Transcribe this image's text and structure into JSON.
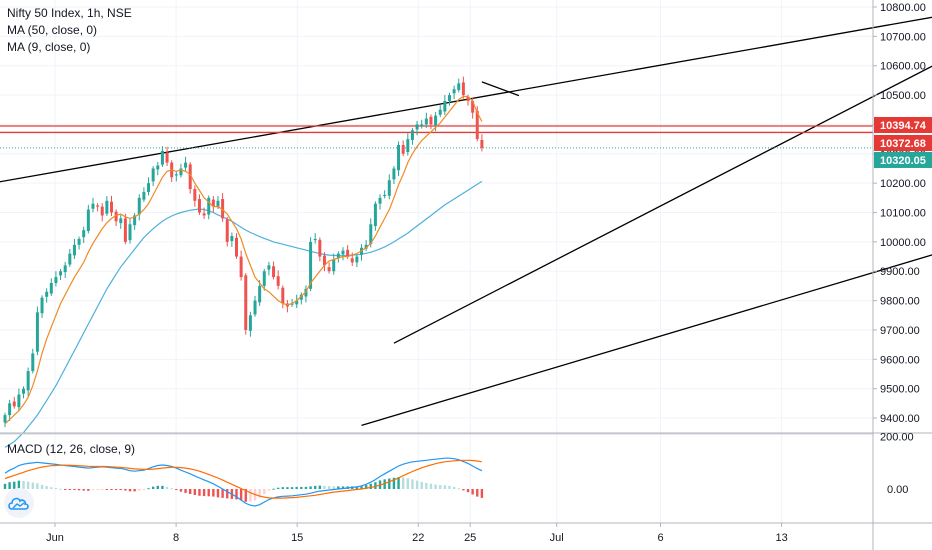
{
  "legend": {
    "symbol": "Nifty 50 Index, 1h, NSE",
    "ma50": "MA (50, close, 0)",
    "ma9": "MA (9, close, 0)",
    "macd": "MACD (12, 26, close, 9)"
  },
  "colors": {
    "up": "#26a69a",
    "down": "#ef5350",
    "ma50": "#4eb0dc",
    "ma9": "#f08a24",
    "hline": "#e53935",
    "last": "#26a69a",
    "trend": "#000000"
  },
  "chart_data": [
    {
      "type": "candlestick",
      "title": "Nifty 50 Index, 1h, NSE",
      "y_ticks": [
        "10800.00",
        "10700.00",
        "10600.00",
        "10500.00",
        "10400.00",
        "10300.00",
        "10200.00",
        "10100.00",
        "10000.00",
        "9900.00",
        "9800.00",
        "9700.00",
        "9600.00",
        "9500.00",
        "9400.00"
      ],
      "x_ticks": [
        {
          "label": "Jun",
          "day": 1
        },
        {
          "label": "8",
          "day": 8
        },
        {
          "label": "15",
          "day": 15
        },
        {
          "label": "22",
          "day": 22
        },
        {
          "label": "25",
          "day": 25
        },
        {
          "label": "Jul",
          "day": 30
        },
        {
          "label": "6",
          "day": 36
        },
        {
          "label": "13",
          "day": 43
        }
      ],
      "price_range": [
        9360,
        10820
      ],
      "horizontal_levels": [
        {
          "label": "10394.74",
          "value": 10394.74
        },
        {
          "label": "10372.68",
          "value": 10372.68
        }
      ],
      "last_price": {
        "label": "10320.05",
        "value": 10320.05
      },
      "closes": [
        9410,
        9450,
        9440,
        9480,
        9500,
        9560,
        9620,
        9760,
        9810,
        9830,
        9860,
        9880,
        9900,
        9920,
        9960,
        9990,
        10010,
        10040,
        10110,
        10130,
        10120,
        10090,
        10140,
        10100,
        10070,
        10080,
        10000,
        10060,
        10090,
        10150,
        10170,
        10200,
        10250,
        10260,
        10310,
        10270,
        10220,
        10230,
        10250,
        10270,
        10180,
        10140,
        10100,
        10090,
        10150,
        10120,
        10140,
        10080,
        10000,
        10020,
        9950,
        9880,
        9700,
        9750,
        9800,
        9850,
        9900,
        9920,
        9880,
        9850,
        9790,
        9780,
        9790,
        9800,
        9820,
        9840,
        10000,
        10010,
        9950,
        9920,
        9900,
        9940,
        9960,
        9970,
        9950,
        9930,
        9950,
        9980,
        9990,
        10060,
        10130,
        10150,
        10160,
        10210,
        10250,
        10330,
        10300,
        10350,
        10380,
        10400,
        10400,
        10420,
        10400,
        10430,
        10450,
        10480,
        10500,
        10520,
        10540,
        10500,
        10480,
        10440,
        10350,
        10320
      ],
      "ma9": [
        9380,
        9395,
        9410,
        9425,
        9445,
        9470,
        9510,
        9560,
        9620,
        9670,
        9710,
        9750,
        9790,
        9820,
        9850,
        9880,
        9905,
        9930,
        9965,
        9995,
        10020,
        10045,
        10065,
        10080,
        10090,
        10095,
        10085,
        10080,
        10085,
        10095,
        10110,
        10130,
        10160,
        10190,
        10220,
        10240,
        10245,
        10240,
        10245,
        10240,
        10230,
        10200,
        10175,
        10150,
        10135,
        10120,
        10120,
        10110,
        10095,
        10070,
        10045,
        10010,
        9960,
        9920,
        9880,
        9860,
        9840,
        9830,
        9815,
        9800,
        9790,
        9785,
        9790,
        9800,
        9815,
        9830,
        9860,
        9880,
        9900,
        9920,
        9935,
        9940,
        9945,
        9950,
        9950,
        9955,
        9960,
        9970,
        9980,
        9995,
        10020,
        10050,
        10080,
        10110,
        10150,
        10195,
        10230,
        10270,
        10300,
        10325,
        10345,
        10360,
        10375,
        10390,
        10405,
        10425,
        10445,
        10465,
        10485,
        10495,
        10495,
        10480,
        10440,
        10410
      ],
      "ma50": [
        9300,
        9310,
        9320,
        9335,
        9350,
        9370,
        9390,
        9410,
        9435,
        9460,
        9485,
        9510,
        9540,
        9570,
        9600,
        9630,
        9660,
        9690,
        9720,
        9750,
        9780,
        9810,
        9840,
        9865,
        9890,
        9915,
        9935,
        9955,
        9975,
        9995,
        10015,
        10030,
        10045,
        10058,
        10070,
        10080,
        10088,
        10095,
        10100,
        10104,
        10108,
        10110,
        10112,
        10110,
        10106,
        10100,
        10092,
        10085,
        10078,
        10070,
        10060,
        10050,
        10040,
        10032,
        10025,
        10018,
        10012,
        10006,
        10000,
        9996,
        9992,
        9988,
        9984,
        9980,
        9976,
        9972,
        9968,
        9964,
        9960,
        9957,
        9955,
        9954,
        9953,
        9953,
        9954,
        9955,
        9956,
        9958,
        9961,
        9965,
        9970,
        9976,
        9983,
        9991,
        10000,
        10010,
        10020,
        10030,
        10042,
        10054,
        10066,
        10078,
        10090,
        10102,
        10114,
        10126,
        10136,
        10146,
        10156,
        10166,
        10176,
        10186,
        10196,
        10206
      ],
      "trendlines": [
        {
          "from": {
            "bar": -10,
            "price": 10180
          },
          "to": {
            "bar": 211,
            "price": 10795
          }
        },
        {
          "from": {
            "bar": 84,
            "price": 9655
          },
          "to": {
            "bar": 206,
            "price": 10645
          }
        },
        {
          "from": {
            "bar": 77,
            "price": 9375
          },
          "to": {
            "bar": 222,
            "price": 10058
          }
        },
        {
          "from": {
            "bar": 103,
            "price": 10545
          },
          "to": {
            "bar": 111,
            "price": 10498
          }
        }
      ]
    },
    {
      "type": "macd",
      "title": "MACD (12, 26, close, 9)",
      "y_ticks": [
        "200.00",
        "0.00"
      ],
      "y_range": [
        -85,
        210
      ],
      "macd": [
        60,
        72,
        80,
        90,
        95,
        98,
        100,
        102,
        100,
        98,
        96,
        94,
        92,
        90,
        88,
        86,
        84,
        82,
        80,
        82,
        84,
        85,
        84,
        82,
        80,
        79,
        75,
        70,
        68,
        70,
        72,
        78,
        85,
        90,
        92,
        90,
        86,
        80,
        72,
        65,
        58,
        50,
        42,
        35,
        28,
        20,
        10,
        0,
        -10,
        -20,
        -30,
        -42,
        -55,
        -62,
        -65,
        -60,
        -50,
        -40,
        -34,
        -30,
        -28,
        -27,
        -26,
        -24,
        -22,
        -20,
        -16,
        -12,
        -8,
        -6,
        -4,
        -2,
        0,
        2,
        4,
        6,
        8,
        12,
        18,
        26,
        36,
        48,
        58,
        68,
        78,
        88,
        95,
        100,
        104,
        106,
        108,
        110,
        112,
        114,
        116,
        118,
        118,
        116,
        112,
        105,
        98,
        88,
        78,
        70
      ],
      "signal": [
        40,
        46,
        52,
        58,
        64,
        70,
        75,
        80,
        84,
        87,
        89,
        90,
        91,
        91,
        91,
        90,
        89,
        88,
        87,
        86,
        86,
        86,
        86,
        85,
        84,
        83,
        81,
        79,
        77,
        76,
        75,
        75,
        76,
        78,
        80,
        82,
        83,
        83,
        82,
        80,
        77,
        73,
        68,
        62,
        56,
        49,
        42,
        34,
        26,
        18,
        10,
        2,
        -6,
        -14,
        -21,
        -27,
        -31,
        -34,
        -35,
        -35,
        -35,
        -34,
        -33,
        -32,
        -30,
        -28,
        -26,
        -24,
        -21,
        -18,
        -15,
        -12,
        -10,
        -8,
        -6,
        -4,
        -2,
        0,
        3,
        6,
        10,
        15,
        21,
        28,
        35,
        43,
        51,
        59,
        67,
        74,
        81,
        87,
        92,
        97,
        101,
        104,
        106,
        108,
        109,
        110,
        110,
        109,
        107,
        104
      ]
    }
  ]
}
